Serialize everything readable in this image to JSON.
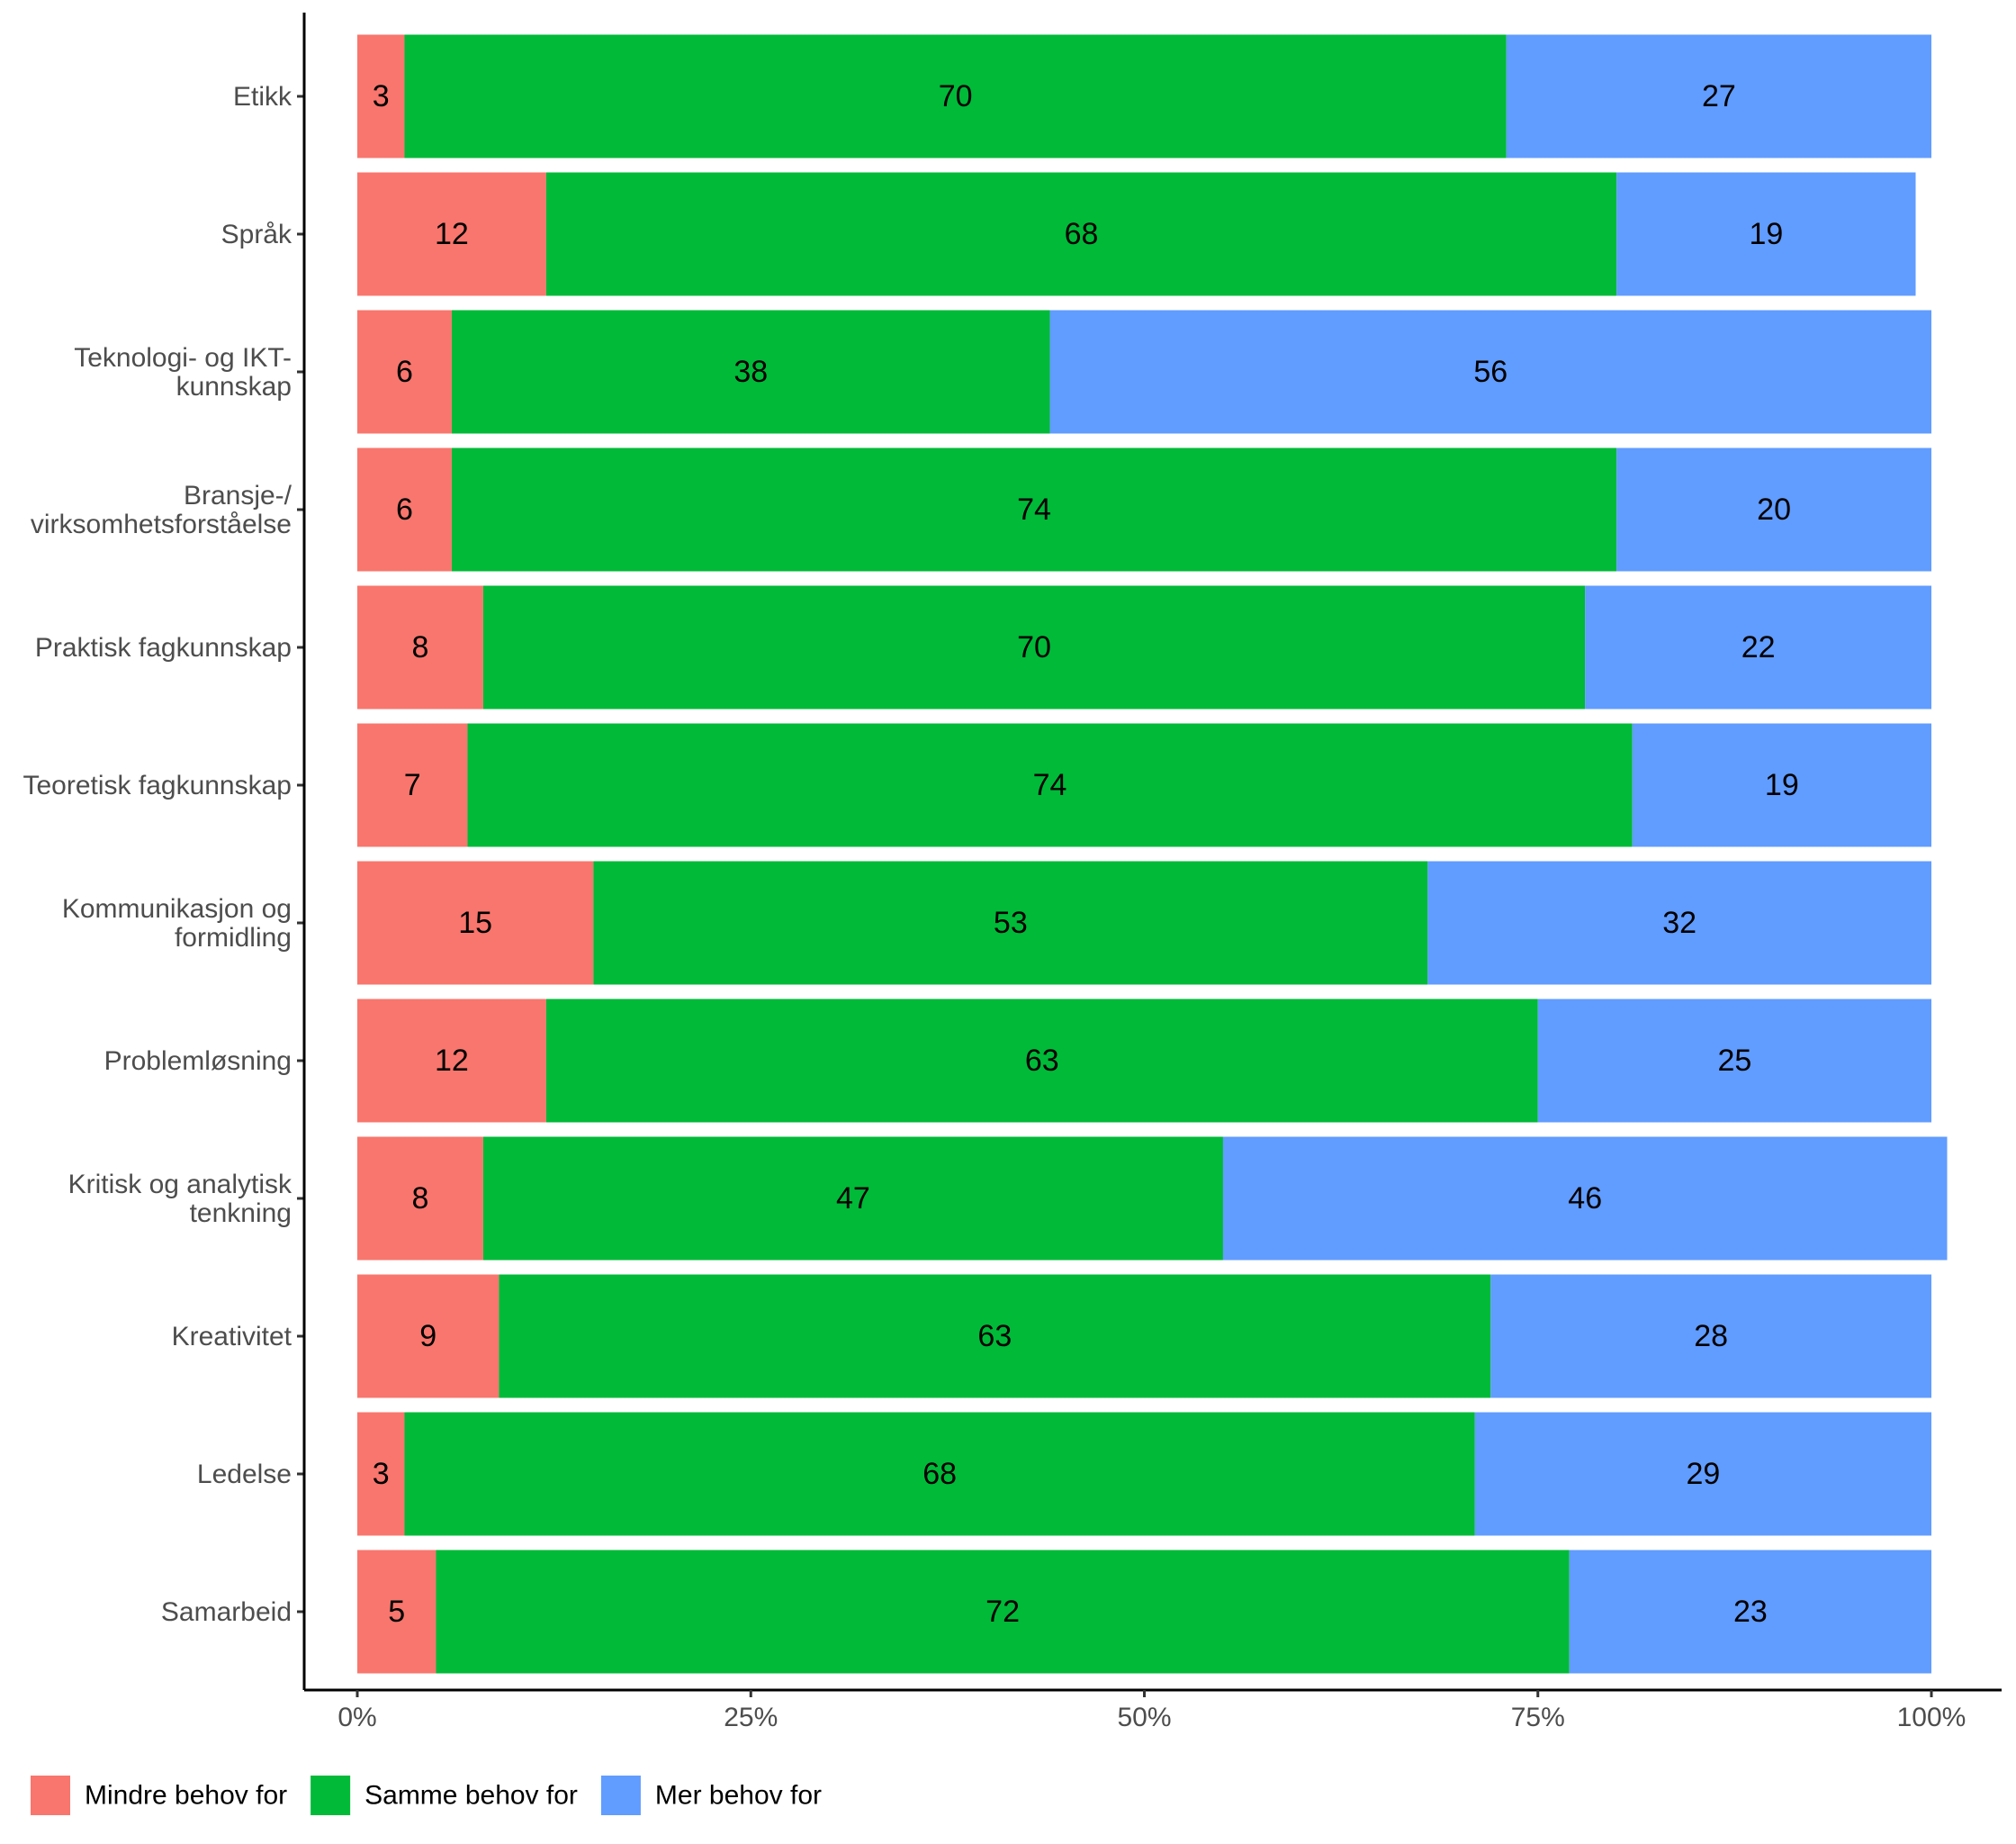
{
  "chart_data": {
    "type": "bar",
    "orientation": "horizontal",
    "stacked": true,
    "categories": [
      "Etikk",
      "Språk",
      "Teknologi- og IKT-\nkunnskap",
      "Bransje-/\nvirksomhetsforståelse",
      "Praktisk fagkunnskap",
      "Teoretisk fagkunnskap",
      "Kommunikasjon og\nformidling",
      "Problemløsning",
      "Kritisk og analytisk\ntenkning",
      "Kreativitet",
      "Ledelse",
      "Samarbeid"
    ],
    "series": [
      {
        "name": "Mindre behov for",
        "color": "#F8766D",
        "values": [
          3,
          12,
          6,
          6,
          8,
          7,
          15,
          12,
          8,
          9,
          3,
          5
        ]
      },
      {
        "name": "Samme behov for",
        "color": "#00BA38",
        "values": [
          70,
          68,
          38,
          74,
          70,
          74,
          53,
          63,
          47,
          63,
          68,
          72
        ]
      },
      {
        "name": "Mer behov for",
        "color": "#619CFF",
        "values": [
          27,
          19,
          56,
          20,
          22,
          19,
          32,
          25,
          46,
          28,
          29,
          23
        ]
      }
    ],
    "xlim": [
      0,
      100
    ],
    "xticks": [
      "0%",
      "25%",
      "50%",
      "75%",
      "100%"
    ],
    "legend_position": "bottom-left",
    "grid": false
  }
}
